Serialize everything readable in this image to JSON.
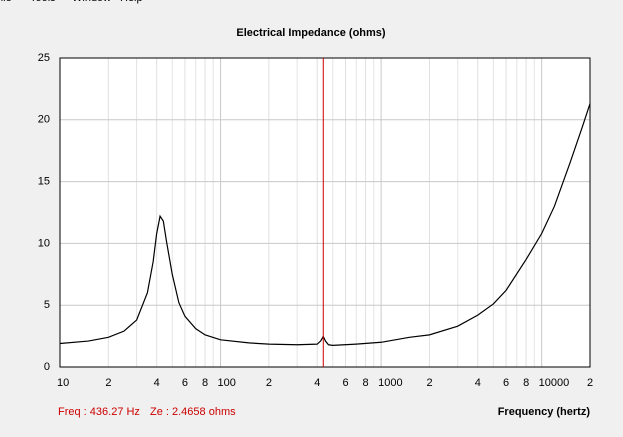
{
  "menu": [
    "File",
    "Tools",
    "Window",
    "Help"
  ],
  "chart_data": {
    "type": "line",
    "title": "Electrical Impedance (ohms)",
    "xlabel": "Frequency (hertz)",
    "x": [
      10,
      15,
      20,
      25,
      30,
      35,
      38,
      40,
      42,
      44,
      46,
      50,
      55,
      60,
      70,
      80,
      100,
      150,
      200,
      300,
      400,
      420,
      436.27,
      450,
      470,
      500,
      700,
      1000,
      1500,
      2000,
      3000,
      4000,
      5000,
      6000,
      8000,
      10000,
      12000,
      15000,
      18000,
      20000
    ],
    "series": [
      {
        "name": "Impedance",
        "color": "#000000",
        "values": [
          1.9,
          2.1,
          2.4,
          2.9,
          3.8,
          6,
          8.5,
          10.8,
          12.2,
          11.8,
          10.2,
          7.5,
          5.2,
          4.1,
          3.1,
          2.6,
          2.2,
          1.95,
          1.85,
          1.8,
          1.85,
          2.1,
          2.4658,
          2.1,
          1.8,
          1.75,
          1.85,
          2.0,
          2.4,
          2.6,
          3.3,
          4.2,
          5.1,
          6.2,
          8.7,
          10.8,
          13.0,
          16.5,
          19.5,
          21.3
        ]
      }
    ],
    "xlog": true,
    "xlim": [
      10,
      20000
    ],
    "ylim": [
      0,
      25
    ],
    "yticks": [
      0,
      5,
      10,
      15,
      20,
      25
    ],
    "xticks": [
      10,
      {
        "value": 20,
        "label": "2"
      },
      {
        "value": 40,
        "label": "4"
      },
      {
        "value": 60,
        "label": "6"
      },
      {
        "value": 80,
        "label": "8"
      },
      100,
      {
        "value": 200,
        "label": "2"
      },
      {
        "value": 400,
        "label": "4"
      },
      {
        "value": 600,
        "label": "6"
      },
      {
        "value": 800,
        "label": "8"
      },
      1000,
      {
        "value": 2000,
        "label": "2"
      },
      {
        "value": 4000,
        "label": "4"
      },
      {
        "value": 6000,
        "label": "6"
      },
      {
        "value": 8000,
        "label": "8"
      },
      10000,
      {
        "value": 20000,
        "label": "2"
      }
    ],
    "xgrid_minor": [
      30,
      50,
      70,
      90,
      300,
      500,
      700,
      900,
      3000,
      5000,
      7000,
      9000
    ],
    "grid": true,
    "cursor": {
      "x": 436.27,
      "color": "#cc0000"
    },
    "readout": [
      "Freq : 436.27 Hz",
      "Ze : 2.4658 ohms"
    ]
  }
}
